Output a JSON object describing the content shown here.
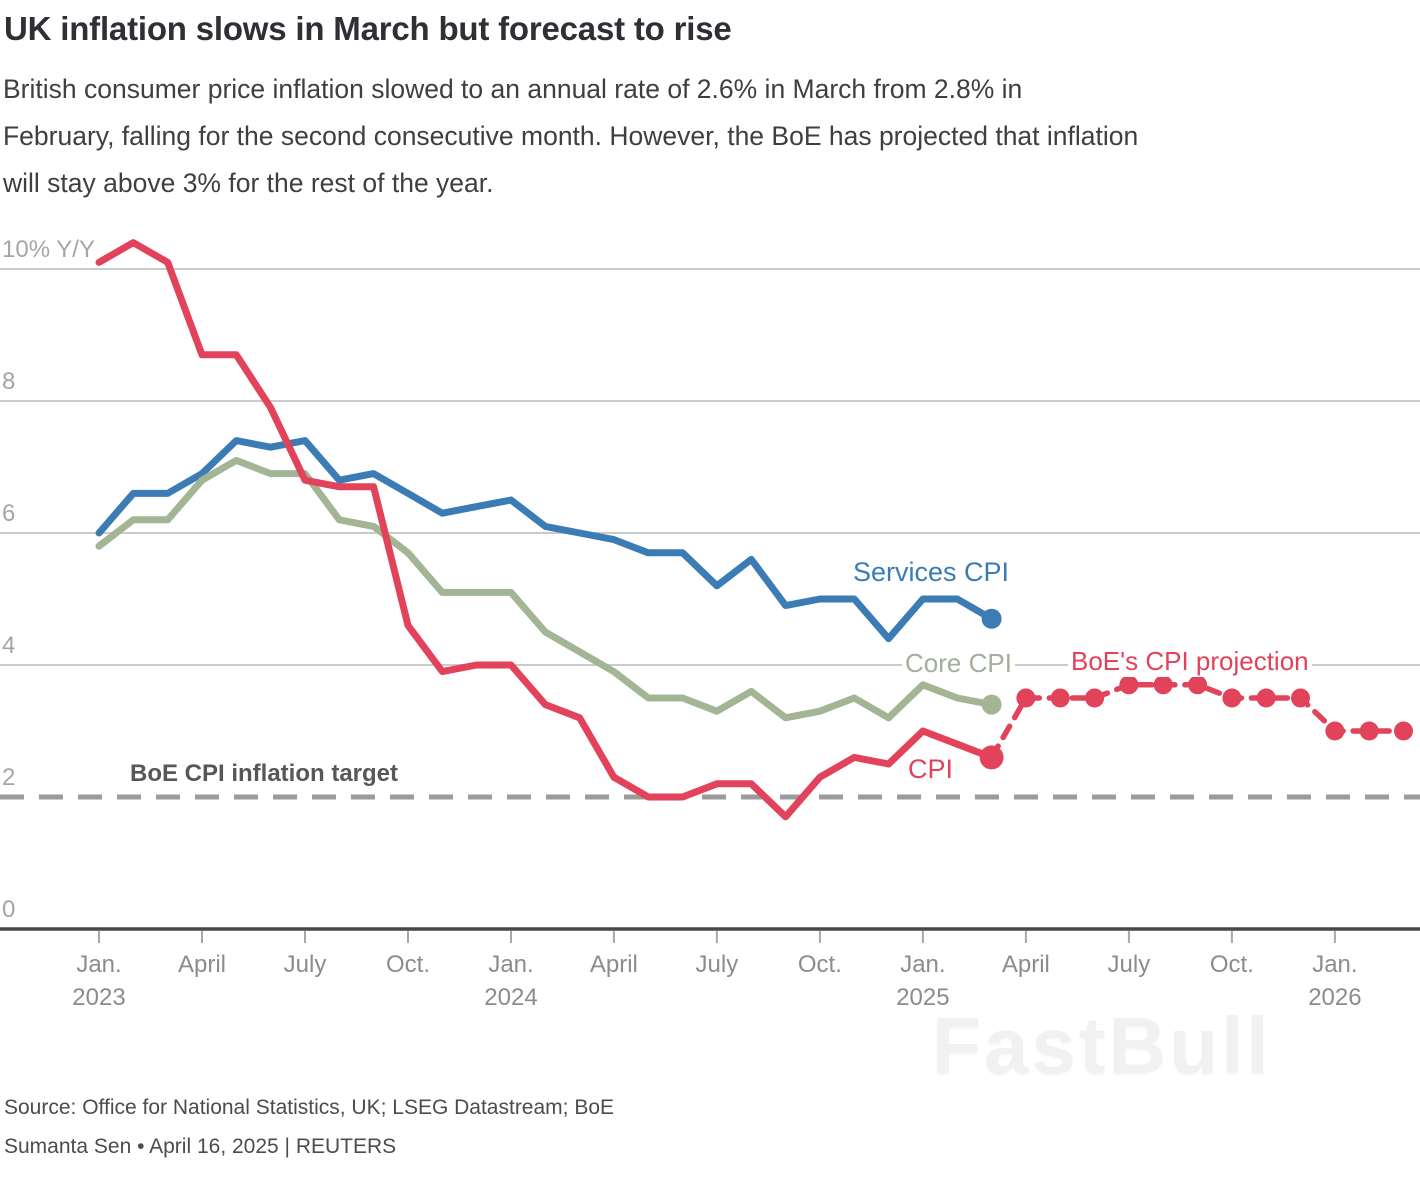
{
  "header": {
    "title": "UK inflation slows in March but forecast to rise",
    "subtitle_lines": [
      "British consumer price inflation slowed to an annual rate of 2.6% in March from 2.8% in",
      "February, falling for the second consecutive month. However, the BoE has projected that inflation",
      "will stay above 3% for the rest of the year."
    ]
  },
  "chart_data": {
    "type": "line",
    "title": "UK inflation slows in March but forecast to rise",
    "x_start": "Jan 2023",
    "x_end": "Mar 2026",
    "months_per_point": 1,
    "y_axis": {
      "unit": "% Y/Y",
      "ticks": [
        {
          "v": 10,
          "label": "10% Y/Y"
        },
        {
          "v": 8,
          "label": "8"
        },
        {
          "v": 6,
          "label": "6"
        },
        {
          "v": 4,
          "label": "4"
        },
        {
          "v": 2,
          "label": "2"
        },
        {
          "v": 0,
          "label": "0"
        }
      ],
      "range": [
        0,
        10.6
      ],
      "grid": true
    },
    "x_axis": {
      "ticks": [
        {
          "m": 0,
          "label": "Jan.",
          "year": "2023"
        },
        {
          "m": 3,
          "label": "April",
          "year": ""
        },
        {
          "m": 6,
          "label": "July",
          "year": ""
        },
        {
          "m": 9,
          "label": "Oct.",
          "year": ""
        },
        {
          "m": 12,
          "label": "Jan.",
          "year": "2024"
        },
        {
          "m": 15,
          "label": "April",
          "year": ""
        },
        {
          "m": 18,
          "label": "July",
          "year": ""
        },
        {
          "m": 21,
          "label": "Oct.",
          "year": ""
        },
        {
          "m": 24,
          "label": "Jan.",
          "year": "2025"
        },
        {
          "m": 27,
          "label": "April",
          "year": ""
        },
        {
          "m": 30,
          "label": "July",
          "year": ""
        },
        {
          "m": 33,
          "label": "Oct.",
          "year": ""
        },
        {
          "m": 36,
          "label": "Jan.",
          "year": "2026"
        }
      ]
    },
    "series": [
      {
        "name": "Services CPI",
        "color": "#3b7cb4",
        "start": "Jan 2023",
        "values": [
          6.0,
          6.6,
          6.6,
          6.9,
          7.4,
          7.3,
          7.4,
          6.8,
          6.9,
          6.6,
          6.3,
          6.4,
          6.5,
          6.1,
          6.0,
          5.9,
          5.7,
          5.7,
          5.2,
          5.6,
          4.9,
          5.0,
          5.0,
          4.4,
          5.0,
          5.0,
          4.7
        ]
      },
      {
        "name": "Core CPI",
        "color": "#a4b595",
        "start": "Jan 2023",
        "values": [
          5.8,
          6.2,
          6.2,
          6.8,
          7.1,
          6.9,
          6.9,
          6.2,
          6.1,
          5.7,
          5.1,
          5.1,
          5.1,
          4.5,
          4.2,
          3.9,
          3.5,
          3.5,
          3.3,
          3.6,
          3.2,
          3.3,
          3.5,
          3.2,
          3.7,
          3.5,
          3.4
        ]
      },
      {
        "name": "CPI",
        "color": "#e2425a",
        "start": "Jan 2023",
        "values": [
          10.1,
          10.4,
          10.1,
          8.7,
          8.7,
          7.9,
          6.8,
          6.7,
          6.7,
          4.6,
          3.9,
          4.0,
          4.0,
          3.4,
          3.2,
          2.3,
          2.0,
          2.0,
          2.2,
          2.2,
          1.7,
          2.3,
          2.6,
          2.5,
          3.0,
          2.8,
          2.6
        ]
      }
    ],
    "projection": {
      "name": "BoE's CPI projection",
      "color": "#e2425a",
      "style": "dashed-with-dots",
      "start": "Apr 2025",
      "start_m": 27,
      "values": [
        3.5,
        3.5,
        3.5,
        3.7,
        3.7,
        3.7,
        3.5,
        3.5,
        3.5,
        3.0,
        3.0,
        3.0
      ]
    },
    "target": {
      "label": "BoE CPI inflation target",
      "value": 2,
      "line_color": "#9b9b9b"
    },
    "legend_position": "inline-end-of-line-labels"
  },
  "footer": {
    "source": "Source: Office for National Statistics, UK; LSEG Datastream; BoE",
    "byline": "Sumanta Sen • April 16, 2025 | REUTERS"
  },
  "watermark": {
    "text": "FastBull"
  }
}
